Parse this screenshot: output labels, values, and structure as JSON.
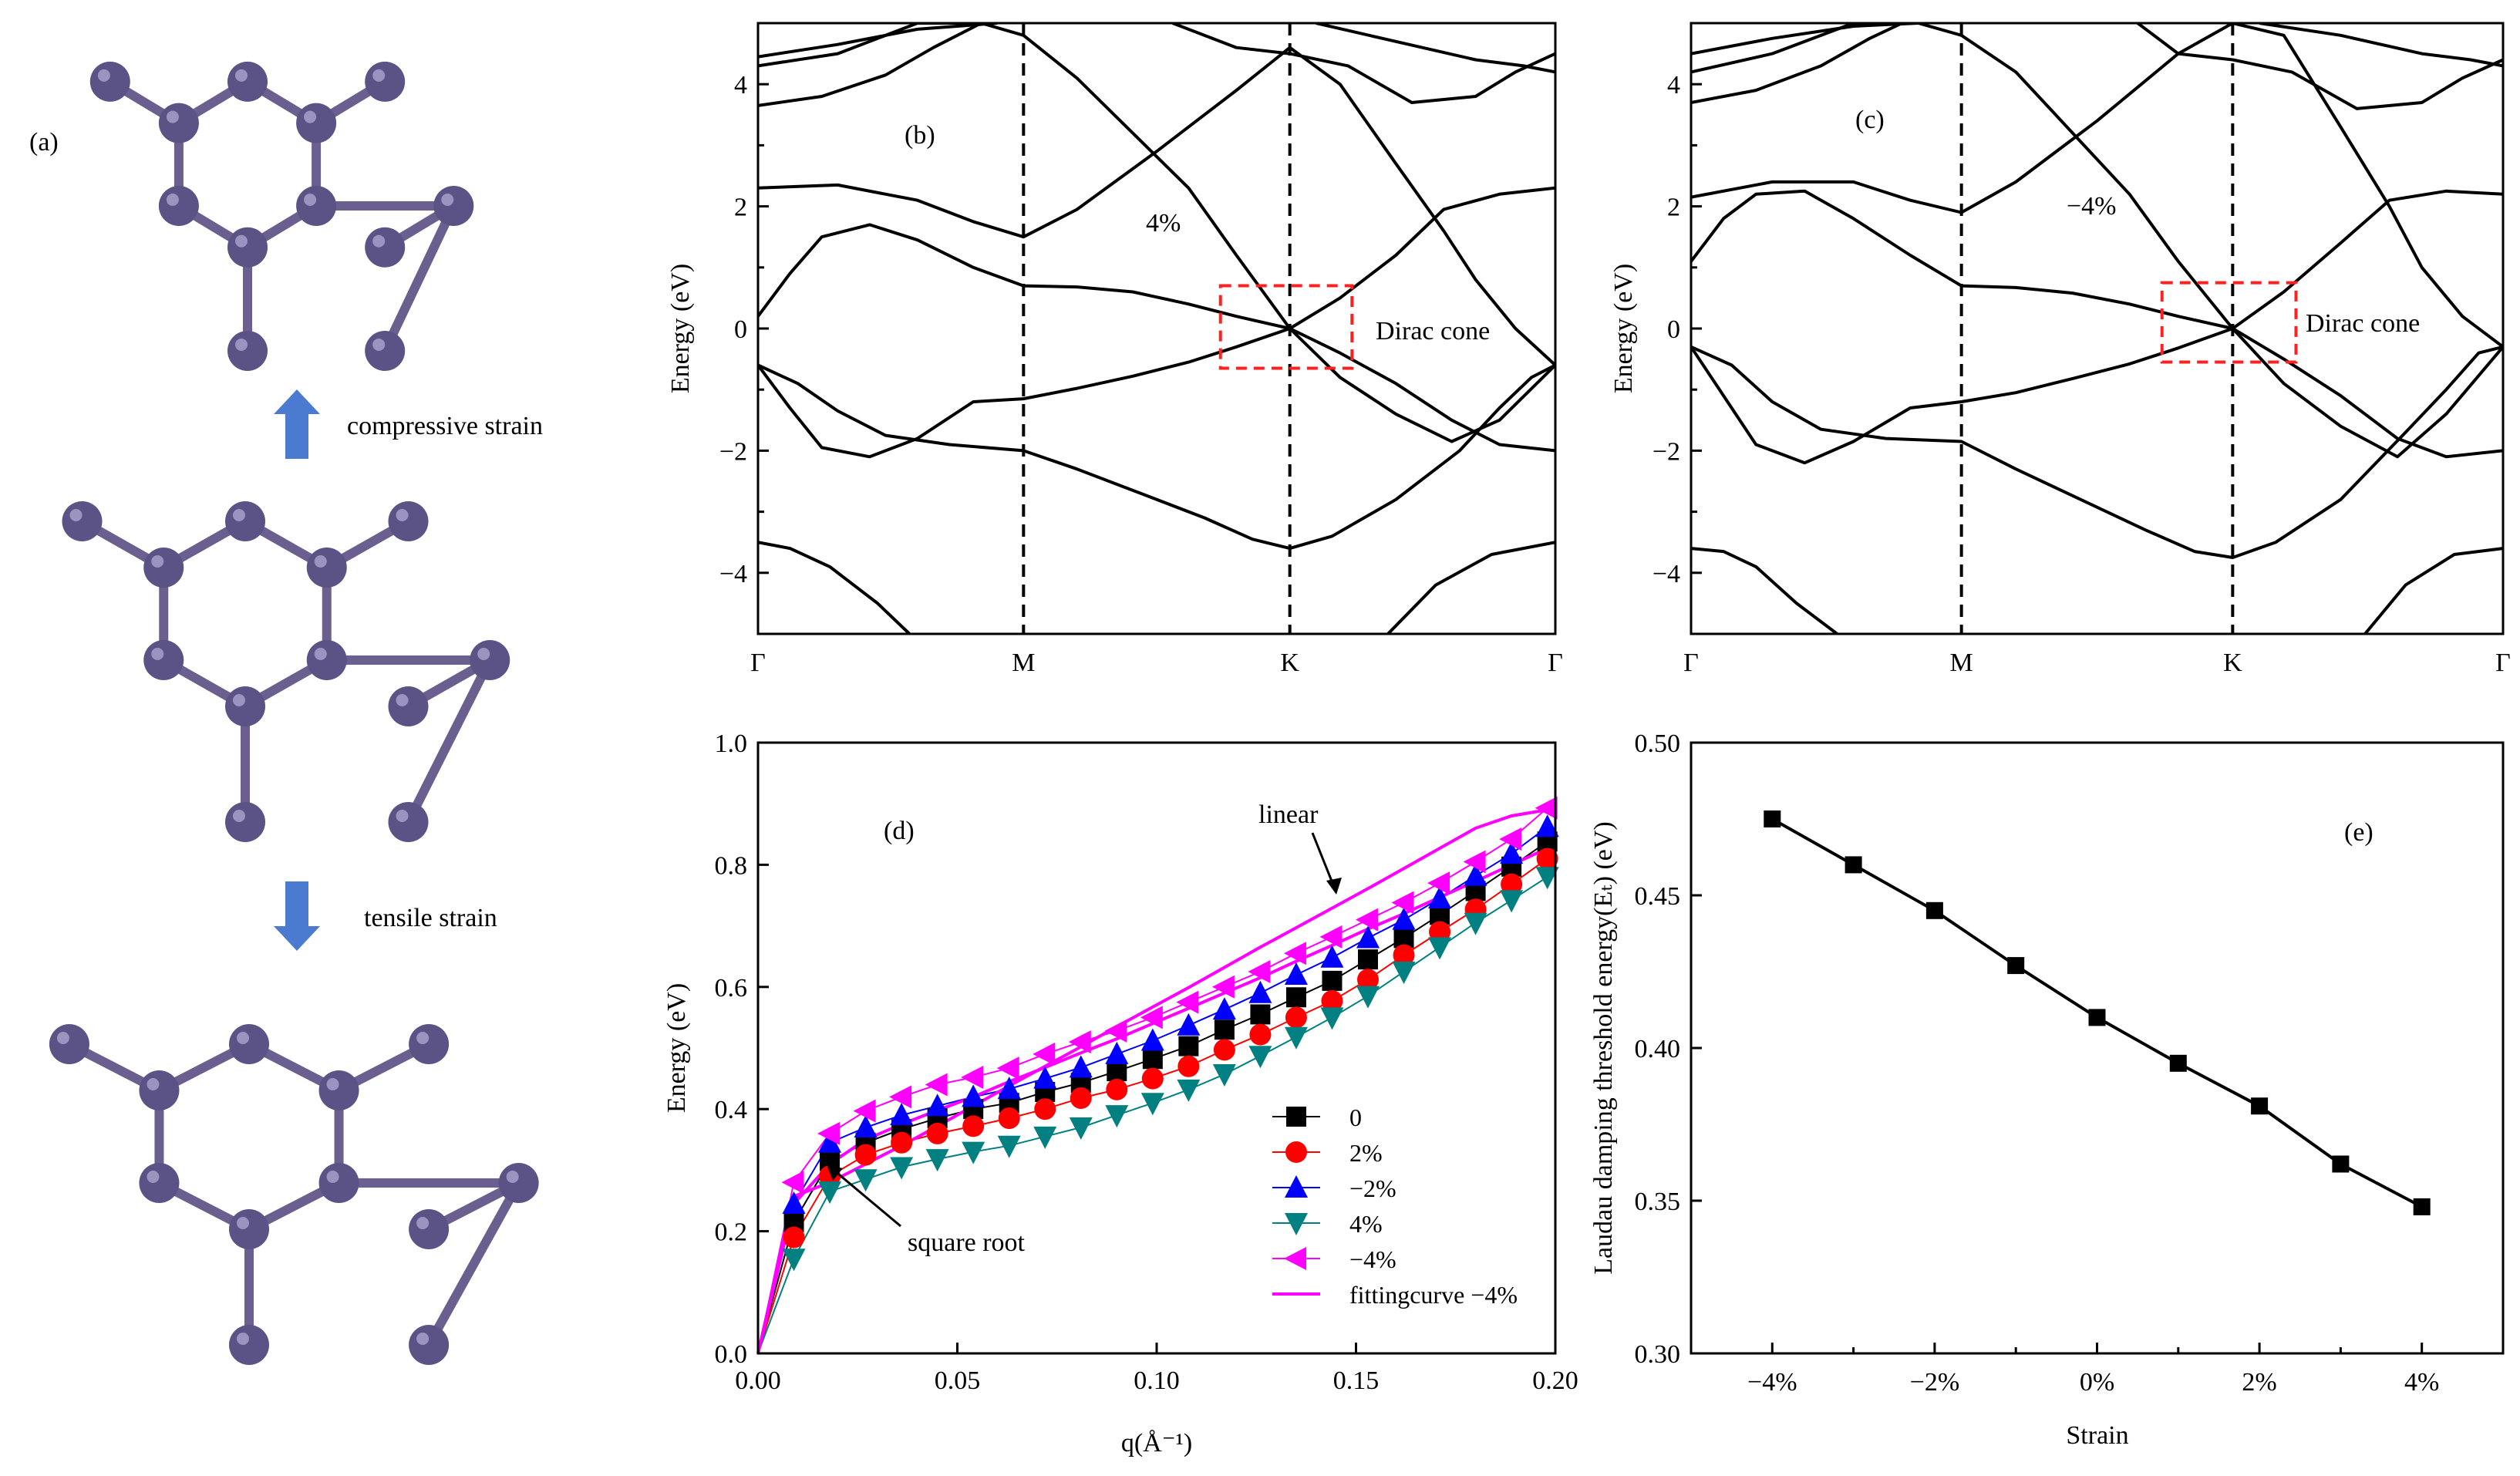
{
  "panel_a": {
    "label": "(a)",
    "compressive_label": "compressive strain",
    "tensile_label": "tensile strain",
    "colors": {
      "atom": "#5b5286",
      "bond": "#6a5f8e",
      "arrow": "#4a7bd0"
    }
  },
  "chart_data": [
    {
      "id": "b",
      "type": "line",
      "panel_label": "(b)",
      "strain_label": "4%",
      "ylabel": "Energy (eV)",
      "ylim": [
        -5,
        5
      ],
      "yticks": [
        -4,
        -2,
        0,
        2,
        4
      ],
      "ytick_labels": [
        "−4",
        "−2",
        "0",
        "2",
        "4"
      ],
      "kpath": [
        "Γ",
        "M",
        "K",
        "Γ"
      ],
      "kpath_x": [
        0,
        0.333,
        0.667,
        1.0
      ],
      "annotation": "Dirac cone",
      "dirac_box": {
        "x0": 0.58,
        "x1": 0.745,
        "y0": -0.65,
        "y1": 0.7
      },
      "series": [
        {
          "name": "band-v1",
          "x": [
            0,
            0.04,
            0.08,
            0.14,
            0.2,
            0.27,
            0.333,
            0.4,
            0.47,
            0.54,
            0.6,
            0.667,
            0.73,
            0.8,
            0.87,
            0.93,
            1.0
          ],
          "y": [
            -0.6,
            -1.3,
            -1.95,
            -2.1,
            -1.8,
            -1.2,
            -1.15,
            -0.98,
            -0.78,
            -0.55,
            -0.3,
            0,
            -0.4,
            -0.9,
            -1.5,
            -1.9,
            -2.0
          ]
        },
        {
          "name": "band-v2",
          "x": [
            0,
            0.05,
            0.1,
            0.16,
            0.24,
            0.333,
            0.4,
            0.48,
            0.56,
            0.62,
            0.667,
            0.72,
            0.8,
            0.88,
            0.93,
            0.97,
            1.0
          ],
          "y": [
            -0.6,
            -0.9,
            -1.35,
            -1.75,
            -1.9,
            -2.0,
            -2.3,
            -2.7,
            -3.1,
            -3.45,
            -3.6,
            -3.4,
            -2.8,
            -2.0,
            -1.3,
            -0.8,
            -0.6
          ]
        },
        {
          "name": "band-v3",
          "x": [
            0,
            0.04,
            0.09,
            0.15,
            0.19
          ],
          "y": [
            -3.5,
            -3.6,
            -3.9,
            -4.5,
            -5.0
          ]
        },
        {
          "name": "band-v4",
          "x": [
            0.79,
            0.85,
            0.92,
            1.0
          ],
          "y": [
            -5.0,
            -4.2,
            -3.7,
            -3.5
          ]
        },
        {
          "name": "band-c1",
          "x": [
            0,
            0.04,
            0.08,
            0.14,
            0.2,
            0.27,
            0.333,
            0.4,
            0.47,
            0.54,
            0.6,
            0.667,
            0.73,
            0.8,
            0.86,
            0.93,
            1.0
          ],
          "y": [
            0.2,
            0.9,
            1.5,
            1.7,
            1.45,
            1.0,
            0.7,
            0.68,
            0.6,
            0.4,
            0.2,
            0,
            0.5,
            1.2,
            1.95,
            2.2,
            2.3
          ]
        },
        {
          "name": "band-c2",
          "x": [
            0,
            0.1,
            0.2,
            0.27,
            0.333,
            0.4,
            0.5,
            0.6,
            0.667,
            0.73,
            0.8,
            0.86,
            0.9,
            0.95,
            1.0
          ],
          "y": [
            2.3,
            2.35,
            2.1,
            1.75,
            1.5,
            1.95,
            2.9,
            3.9,
            4.6,
            4.0,
            2.7,
            1.6,
            0.8,
            0.0,
            -0.6
          ]
        },
        {
          "name": "band-c3",
          "x": [
            0,
            0.08,
            0.16,
            0.22,
            0.28
          ],
          "y": [
            3.65,
            3.8,
            4.15,
            4.6,
            5.0
          ]
        },
        {
          "name": "band-c4",
          "x": [
            0,
            0.1,
            0.2,
            0.28,
            0.333,
            0.4,
            0.47,
            0.54,
            0.6,
            0.667,
            0.73,
            0.8,
            0.87,
            0.93,
            1.0
          ],
          "y": [
            4.3,
            4.5,
            5.0,
            5.0,
            4.8,
            4.1,
            3.2,
            2.3,
            1.2,
            0.0,
            -0.8,
            -1.4,
            -1.85,
            -1.5,
            -0.6
          ]
        },
        {
          "name": "band-c5",
          "x": [
            0,
            0.1,
            0.2,
            0.3
          ],
          "y": [
            4.45,
            4.65,
            4.9,
            5.0
          ]
        },
        {
          "name": "band-c6",
          "x": [
            0.52,
            0.6,
            0.667,
            0.74,
            0.82,
            0.9,
            0.95,
            1.0
          ],
          "y": [
            5.0,
            4.6,
            4.5,
            4.3,
            3.7,
            3.8,
            4.2,
            4.5
          ]
        },
        {
          "name": "band-c7",
          "x": [
            0.7,
            0.8,
            0.9,
            0.96,
            1.0
          ],
          "y": [
            5.0,
            4.7,
            4.4,
            4.3,
            4.2
          ]
        }
      ]
    },
    {
      "id": "c",
      "type": "line",
      "panel_label": "(c)",
      "strain_label": "−4%",
      "ylabel": "Energy (eV)",
      "ylim": [
        -5,
        5
      ],
      "yticks": [
        -4,
        -2,
        0,
        2,
        4
      ],
      "ytick_labels": [
        "−4",
        "−2",
        "0",
        "2",
        "4"
      ],
      "kpath": [
        "Γ",
        "M",
        "K",
        "Γ"
      ],
      "kpath_x": [
        0,
        0.333,
        0.667,
        1.0
      ],
      "annotation": "Dirac cone",
      "dirac_box": {
        "x0": 0.58,
        "x1": 0.745,
        "y0": -0.55,
        "y1": 0.75
      },
      "series": [
        {
          "name": "band-v1",
          "x": [
            0,
            0.04,
            0.08,
            0.14,
            0.2,
            0.27,
            0.333,
            0.4,
            0.47,
            0.54,
            0.6,
            0.667,
            0.73,
            0.8,
            0.87,
            0.93,
            1.0
          ],
          "y": [
            -0.3,
            -1.1,
            -1.9,
            -2.2,
            -1.85,
            -1.3,
            -1.2,
            -1.05,
            -0.82,
            -0.58,
            -0.32,
            0,
            -0.5,
            -1.1,
            -1.8,
            -2.1,
            -2.0
          ]
        },
        {
          "name": "band-v2",
          "x": [
            0,
            0.05,
            0.1,
            0.16,
            0.24,
            0.333,
            0.4,
            0.48,
            0.56,
            0.62,
            0.667,
            0.72,
            0.8,
            0.88,
            0.93,
            0.97,
            1.0
          ],
          "y": [
            -0.3,
            -0.6,
            -1.2,
            -1.65,
            -1.8,
            -1.85,
            -2.3,
            -2.8,
            -3.3,
            -3.65,
            -3.75,
            -3.5,
            -2.8,
            -1.7,
            -1.0,
            -0.4,
            -0.3
          ]
        },
        {
          "name": "band-v3",
          "x": [
            0,
            0.04,
            0.08,
            0.13,
            0.18
          ],
          "y": [
            -3.6,
            -3.65,
            -3.9,
            -4.5,
            -5.0
          ]
        },
        {
          "name": "band-v4",
          "x": [
            0.83,
            0.88,
            0.94,
            1.0
          ],
          "y": [
            -5.0,
            -4.2,
            -3.7,
            -3.6
          ]
        },
        {
          "name": "band-c1",
          "x": [
            0,
            0.04,
            0.08,
            0.14,
            0.2,
            0.27,
            0.333,
            0.4,
            0.47,
            0.54,
            0.6,
            0.667,
            0.73,
            0.8,
            0.86,
            0.93,
            1.0
          ],
          "y": [
            1.1,
            1.8,
            2.2,
            2.25,
            1.8,
            1.2,
            0.7,
            0.67,
            0.58,
            0.4,
            0.2,
            0,
            0.6,
            1.4,
            2.1,
            2.25,
            2.2
          ]
        },
        {
          "name": "band-c2",
          "x": [
            0,
            0.1,
            0.2,
            0.27,
            0.333,
            0.4,
            0.5,
            0.6,
            0.667,
            0.73,
            0.8,
            0.86,
            0.9,
            0.95,
            1.0
          ],
          "y": [
            2.15,
            2.4,
            2.4,
            2.1,
            1.9,
            2.4,
            3.4,
            4.5,
            5.0,
            4.8,
            3.3,
            2.0,
            1.0,
            0.2,
            -0.3
          ]
        },
        {
          "name": "band-c3",
          "x": [
            0,
            0.08,
            0.16,
            0.22,
            0.26
          ],
          "y": [
            3.7,
            3.9,
            4.3,
            4.75,
            5.0
          ]
        },
        {
          "name": "band-c4",
          "x": [
            0,
            0.1,
            0.2,
            0.28,
            0.333,
            0.4,
            0.47,
            0.54,
            0.6,
            0.667,
            0.73,
            0.8,
            0.87,
            0.93,
            1.0
          ],
          "y": [
            4.2,
            4.5,
            5.0,
            5.0,
            4.8,
            4.2,
            3.2,
            2.2,
            1.1,
            0.0,
            -0.9,
            -1.6,
            -2.1,
            -1.4,
            -0.3
          ]
        },
        {
          "name": "band-c5",
          "x": [
            0,
            0.1,
            0.2,
            0.28
          ],
          "y": [
            4.5,
            4.75,
            4.95,
            5.0
          ]
        },
        {
          "name": "band-c6",
          "x": [
            0.55,
            0.6,
            0.667,
            0.74,
            0.82,
            0.9,
            0.95,
            1.0
          ],
          "y": [
            5.0,
            4.5,
            4.4,
            4.2,
            3.6,
            3.7,
            4.1,
            4.4
          ]
        },
        {
          "name": "band-c7",
          "x": [
            0.7,
            0.8,
            0.9,
            0.96,
            1.0
          ],
          "y": [
            5.0,
            4.8,
            4.5,
            4.4,
            4.3
          ]
        }
      ]
    },
    {
      "id": "d",
      "type": "line",
      "panel_label": "(d)",
      "xlabel": "q(Å⁻¹)",
      "ylabel": "Energy (eV)",
      "xlim": [
        0,
        0.2
      ],
      "ylim": [
        0,
        1.0
      ],
      "xticks": [
        0,
        0.05,
        0.1,
        0.15,
        0.2
      ],
      "xtick_labels": [
        "0.00",
        "0.05",
        "0.10",
        "0.15",
        "0.20"
      ],
      "yticks": [
        0,
        0.2,
        0.4,
        0.6,
        0.8,
        1.0
      ],
      "ytick_labels": [
        "0.0",
        "0.2",
        "0.4",
        "0.6",
        "0.8",
        "1.0"
      ],
      "annotations": [
        "linear",
        "square root"
      ],
      "x": [
        0,
        0.009,
        0.018,
        0.027,
        0.036,
        0.045,
        0.054,
        0.063,
        0.072,
        0.081,
        0.09,
        0.099,
        0.108,
        0.117,
        0.126,
        0.135,
        0.144,
        0.153,
        0.162,
        0.171,
        0.18,
        0.189,
        0.198
      ],
      "series": [
        {
          "name": "0",
          "marker": "square",
          "color": "#000000",
          "values": [
            0,
            0.215,
            0.315,
            0.345,
            0.367,
            0.385,
            0.4,
            0.41,
            0.428,
            0.443,
            0.462,
            0.482,
            0.503,
            0.53,
            0.555,
            0.583,
            0.61,
            0.645,
            0.68,
            0.718,
            0.757,
            0.797,
            0.838
          ]
        },
        {
          "name": "2%",
          "marker": "circle",
          "color": "#ff0000",
          "values": [
            0,
            0.19,
            0.29,
            0.325,
            0.345,
            0.36,
            0.372,
            0.385,
            0.4,
            0.418,
            0.432,
            0.45,
            0.47,
            0.497,
            0.522,
            0.55,
            0.577,
            0.612,
            0.652,
            0.69,
            0.727,
            0.768,
            0.81
          ]
        },
        {
          "name": "−2%",
          "marker": "triangle-up",
          "color": "#0000ff",
          "values": [
            0,
            0.245,
            0.345,
            0.37,
            0.39,
            0.405,
            0.42,
            0.433,
            0.45,
            0.468,
            0.49,
            0.512,
            0.537,
            0.563,
            0.59,
            0.62,
            0.648,
            0.68,
            0.71,
            0.745,
            0.782,
            0.818,
            0.862
          ]
        },
        {
          "name": "4%",
          "marker": "triangle-down",
          "color": "#008080",
          "values": [
            0,
            0.155,
            0.265,
            0.285,
            0.305,
            0.318,
            0.33,
            0.34,
            0.355,
            0.37,
            0.39,
            0.41,
            0.432,
            0.457,
            0.487,
            0.518,
            0.55,
            0.585,
            0.625,
            0.665,
            0.705,
            0.742,
            0.78
          ]
        },
        {
          "name": "−4%",
          "marker": "triangle-left",
          "color": "#ff00ff",
          "values": [
            0,
            0.28,
            0.36,
            0.397,
            0.42,
            0.44,
            0.452,
            0.467,
            0.49,
            0.51,
            0.528,
            0.55,
            0.575,
            0.6,
            0.625,
            0.655,
            0.682,
            0.71,
            0.738,
            0.77,
            0.805,
            0.842,
            0.893
          ]
        },
        {
          "name": "fittingcurve −4%",
          "marker": "line",
          "color": "#ff00ff",
          "values": [
            0,
            0.245,
            0.31,
            0.35,
            0.375,
            0.398,
            0.42,
            0.445,
            0.468,
            0.492,
            0.515,
            0.54,
            0.565,
            0.59,
            0.615,
            0.642,
            0.668,
            0.695,
            0.72,
            0.747,
            0.773,
            0.8,
            0.827
          ]
        },
        {
          "name": "linear",
          "marker": "none",
          "color": "#ff00ff",
          "values": [
            0,
            0.257,
            0.28,
            0.31,
            0.34,
            0.372,
            0.405,
            0.438,
            0.47,
            0.502,
            0.535,
            0.567,
            0.599,
            0.632,
            0.665,
            0.697,
            0.729,
            0.761,
            0.794,
            0.827,
            0.86,
            0.88,
            0.89
          ]
        }
      ]
    },
    {
      "id": "e",
      "type": "line",
      "panel_label": "(e)",
      "xlabel": "Strain",
      "ylabel": "Laudau damping threshold energy(Eₜ)  (eV)",
      "xlim": [
        -5,
        5
      ],
      "ylim": [
        0.3,
        0.5
      ],
      "xticks": [
        -4,
        -2,
        0,
        2,
        4
      ],
      "xtick_labels": [
        "−4%",
        "−2%",
        "0%",
        "2%",
        "4%"
      ],
      "yticks": [
        0.3,
        0.35,
        0.4,
        0.45,
        0.5
      ],
      "ytick_labels": [
        "0.30",
        "0.35",
        "0.40",
        "0.45",
        "0.50"
      ],
      "x": [
        -4,
        -3,
        -2,
        -1,
        0,
        1,
        2,
        3,
        4
      ],
      "values": [
        0.475,
        0.46,
        0.445,
        0.427,
        0.41,
        0.395,
        0.381,
        0.362,
        0.348
      ]
    }
  ]
}
